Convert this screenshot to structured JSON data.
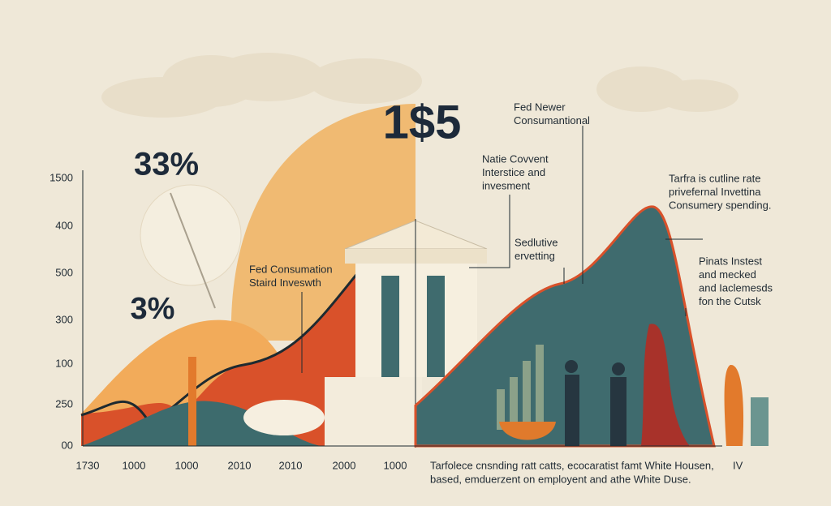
{
  "headline_figures": [
    "33%",
    "3%",
    "1$5"
  ],
  "y_axis_labels": [
    "1500",
    "400",
    "500",
    "300",
    "100",
    "250",
    "00"
  ],
  "x_axis_labels": [
    "1730",
    "1000",
    "1000",
    "2010",
    "2010",
    "2000",
    "1000"
  ],
  "annotations": {
    "fed_newer": [
      "Fed Newer",
      "Consumantional"
    ],
    "natie": [
      "Natie Covvent",
      "Interstice and",
      "invesment"
    ],
    "fed_consumation": [
      "Fed Consumation",
      "Staird Inveswth"
    ],
    "sedlutive": [
      "Sedlutive",
      "ervetting"
    ],
    "tarfra": [
      "Tarfra is cutline rate",
      "privefernal Invettina",
      "Consumery spending."
    ],
    "pinats": [
      "Pinats Instest",
      "and mecked",
      "and Iaclemesds",
      "fon the Cutsk"
    ]
  },
  "footer": {
    "lines": [
      "Tarfolece cnsnding ratt catts, ecocaratist famt White Housen,",
      "based, emduerzent on employent and athe White Duse."
    ],
    "marker": "IV"
  }
}
